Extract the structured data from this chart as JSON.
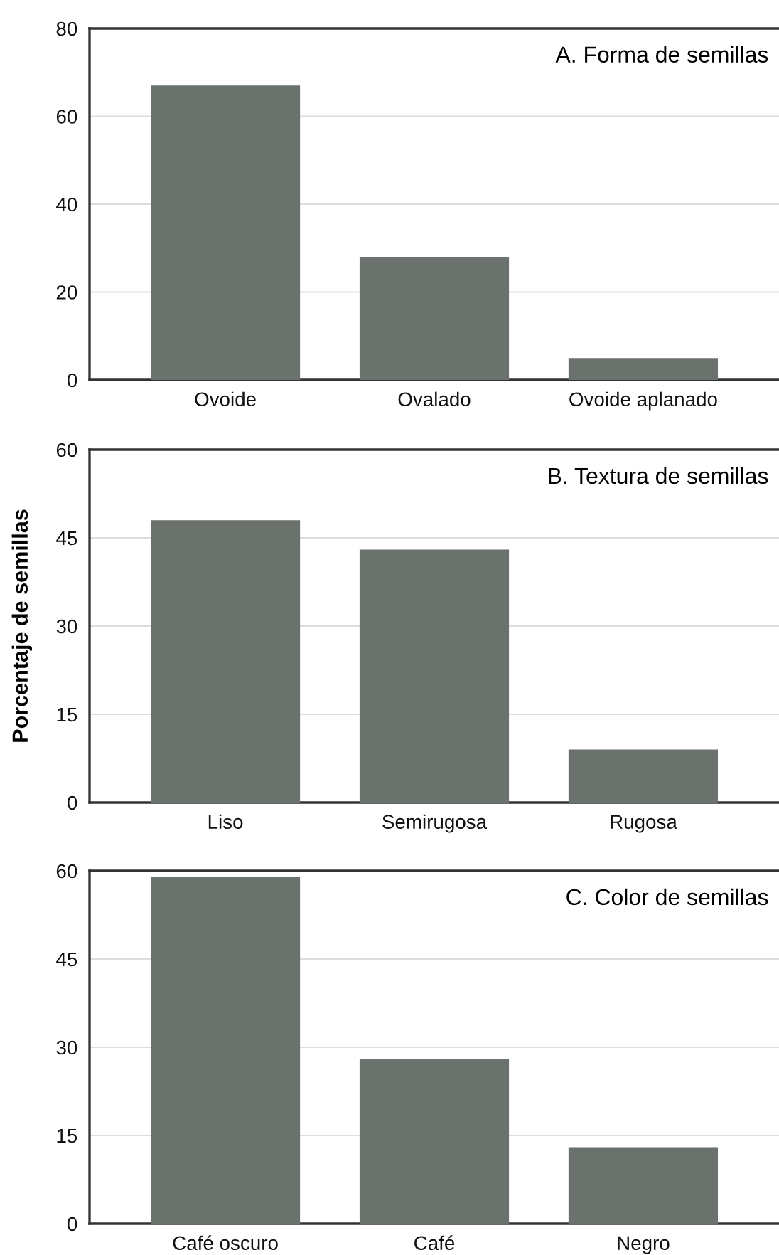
{
  "chart_data": [
    {
      "type": "bar",
      "title": "A. Forma de semillas",
      "categories": [
        "Ovoide",
        "Ovalado",
        "Ovoide aplanado"
      ],
      "values": [
        67,
        28,
        5
      ],
      "color": "#6b716c",
      "ylim": [
        0,
        80
      ],
      "yticks": [
        0,
        20,
        40,
        60,
        80
      ],
      "grid": "y"
    },
    {
      "type": "bar",
      "title": "B. Textura de semillas",
      "ylabel": "Porcentaje de semillas",
      "categories": [
        "Liso",
        "Semirugosa",
        "Rugosa"
      ],
      "values": [
        48,
        43,
        9
      ],
      "color": "#6b716c",
      "ylim": [
        0,
        60
      ],
      "yticks": [
        0,
        15,
        30,
        45,
        60
      ],
      "grid": "y"
    },
    {
      "type": "bar",
      "title": "C. Color de semillas",
      "categories": [
        "Café oscuro",
        "Café",
        "Negro"
      ],
      "values": [
        59,
        28,
        13
      ],
      "color": "#6b716c",
      "ylim": [
        0,
        60
      ],
      "yticks": [
        0,
        15,
        30,
        45,
        60
      ],
      "grid": "y"
    }
  ]
}
